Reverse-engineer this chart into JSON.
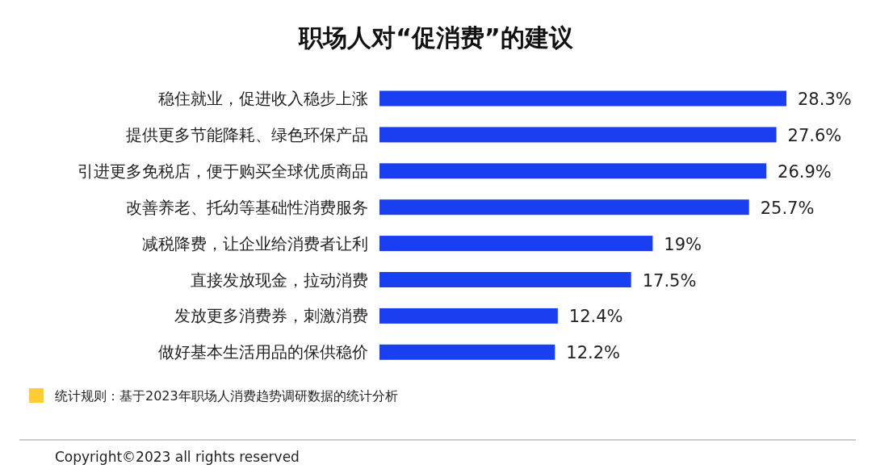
{
  "chart_data": {
    "type": "bar",
    "orientation": "horizontal",
    "title": "职场人对“促消费”的建议",
    "categories": [
      "稳住就业，促进收入稳步上涨",
      "提供更多节能降耗、绿色环保产品",
      "引进更多免税店，便于购买全球优质商品",
      "改善养老、托幼等基础性消费服务",
      "减税降费，让企业给消费者让利",
      "直接发放现金，拉动消费",
      "发放更多消费券，刺激消费",
      "做好基本生活用品的保供稳价"
    ],
    "values": [
      28.3,
      27.6,
      26.9,
      25.7,
      19,
      17.5,
      12.4,
      12.2
    ],
    "value_labels": [
      "28.3%",
      "27.6%",
      "26.9%",
      "25.7%",
      "19%",
      "17.5%",
      "12.4%",
      "12.2%"
    ],
    "color": "#1a3ff0",
    "annotations": [
      "统计规则：基于2023年职场人消费趋势调研数据的统计分析",
      "Copyright©2023 all rights reserved"
    ]
  }
}
